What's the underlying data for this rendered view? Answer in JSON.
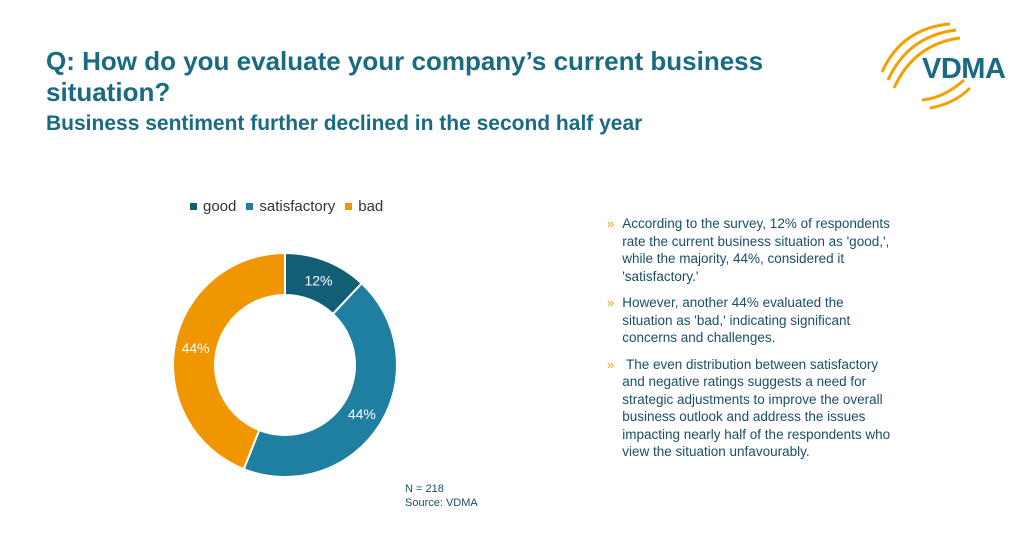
{
  "header": {
    "title": "Q: How do you evaluate your company’s current business situation?",
    "subtitle": "Business sentiment further declined in the second half year"
  },
  "logo": {
    "text": "VDMA",
    "icon": "vdma-arcs-logo",
    "color": "#f5a000"
  },
  "chart_data": {
    "type": "pie",
    "variant": "donut",
    "legend_position": "top",
    "categories": [
      "good",
      "satisfactory",
      "bad"
    ],
    "values": [
      12,
      44,
      44
    ],
    "labels": [
      "12%",
      "44%",
      "44%"
    ],
    "colors": [
      "#135e77",
      "#1f7fa1",
      "#f09600"
    ]
  },
  "note": {
    "n": "N = 218",
    "source": "Source: VDMA"
  },
  "bullets": [
    "According to the survey, 12% of respondents rate the current business situation as 'good,', while the majority, 44%, considered it 'satisfactory.'",
    "However, another 44% evaluated the situation as 'bad,' indicating significant concerns and challenges.",
    " The even distribution between satisfactory and negative ratings suggests a need for strategic adjustments to improve the overall business outlook and address the issues impacting nearly half of the respondents who view the situation unfavourably."
  ],
  "bullet_marker": "»"
}
